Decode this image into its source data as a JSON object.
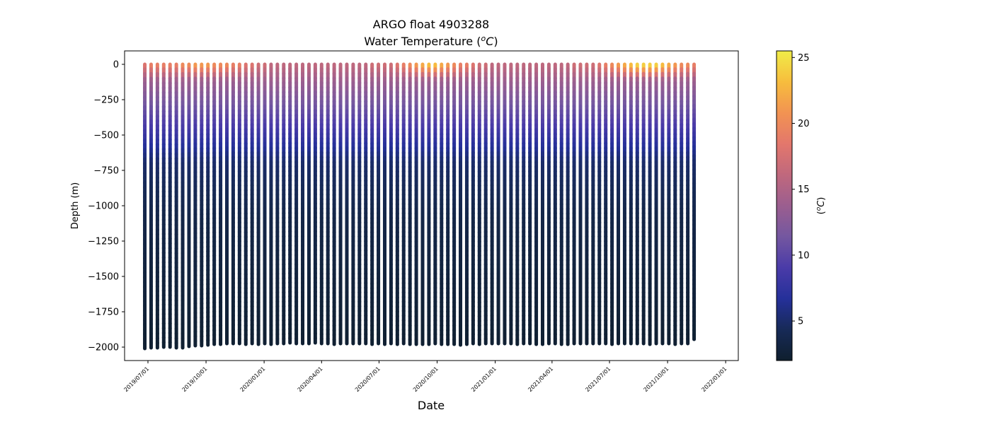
{
  "chart_data": {
    "type": "scatter",
    "title": "ARGO float 4903288",
    "subtitle": "Water Temperature (°C)",
    "subtitle_prefix": "Water Temperature (",
    "subtitle_unit_sup": "o",
    "subtitle_unit_letter": "C",
    "subtitle_suffix": ")",
    "xlabel": "Date",
    "ylabel": "Depth (m)",
    "x_type": "date",
    "xlim": [
      "2019-05-25",
      "2022-01-21"
    ],
    "ylim": [
      -2095,
      95
    ],
    "y_ticks": [
      0,
      -250,
      -500,
      -750,
      -1000,
      -1250,
      -1500,
      -1750,
      -2000
    ],
    "y_tick_labels": [
      "0",
      "−250",
      "−500",
      "−750",
      "−1000",
      "−1250",
      "−1500",
      "−1750",
      "−2000"
    ],
    "x_ticks": [
      "2019-07-01",
      "2019-10-01",
      "2020-01-01",
      "2020-04-01",
      "2020-07-01",
      "2020-10-01",
      "2021-01-01",
      "2021-04-01",
      "2021-07-01",
      "2021-10-01",
      "2022-01-01"
    ],
    "x_tick_labels": [
      "2019/07/01",
      "2019/10/01",
      "2020/01/01",
      "2020/04/01",
      "2020/07/01",
      "2020/10/01",
      "2021/01/01",
      "2021/04/01",
      "2021/07/01",
      "2021/10/01",
      "2022/01/01"
    ],
    "profiles": {
      "first_date": "2019-06-26",
      "interval_days": 10,
      "count": 88,
      "depth_range": [
        -2000,
        0
      ],
      "surface_temp_c": [
        18,
        19,
        19,
        19,
        19,
        19,
        20,
        20,
        21,
        21,
        21,
        20,
        20,
        20,
        19,
        19,
        18,
        18,
        17,
        17,
        16,
        16,
        16,
        16,
        16,
        16,
        16,
        16,
        16,
        16,
        16,
        16,
        16,
        16,
        16,
        16,
        17,
        17,
        17,
        17,
        18,
        19,
        20,
        21,
        22,
        23,
        23,
        22,
        21,
        20,
        19,
        19,
        18,
        17,
        17,
        16,
        16,
        16,
        16,
        16,
        16,
        16,
        16,
        16,
        16,
        16,
        16,
        16,
        17,
        17,
        17,
        17,
        18,
        19,
        20,
        21,
        22,
        23,
        24,
        24,
        24,
        24,
        23,
        22,
        21,
        20,
        20,
        19
      ],
      "bottom_depth_m": [
        -2010,
        -2005,
        -2005,
        -2000,
        -2000,
        -2005,
        -2005,
        -1995,
        -1990,
        -1990,
        -1985,
        -1980,
        -1980,
        -1975,
        -1975,
        -1975,
        -1980,
        -1975,
        -1980,
        -1975,
        -1980,
        -1975,
        -1975,
        -1970,
        -1975,
        -1975,
        -1975,
        -1970,
        -1975,
        -1975,
        -1980,
        -1975,
        -1975,
        -1975,
        -1975,
        -1975,
        -1980,
        -1975,
        -1980,
        -1975,
        -1980,
        -1975,
        -1980,
        -1980,
        -1980,
        -1980,
        -1975,
        -1980,
        -1980,
        -1980,
        -1985,
        -1980,
        -1975,
        -1980,
        -1975,
        -1975,
        -1975,
        -1975,
        -1975,
        -1980,
        -1975,
        -1975,
        -1980,
        -1980,
        -1975,
        -1975,
        -1980,
        -1980,
        -1975,
        -1975,
        -1975,
        -1975,
        -1975,
        -1975,
        -1980,
        -1975,
        -1975,
        -1975,
        -1975,
        -1975,
        -1980,
        -1975,
        -1975,
        -1975,
        -1980,
        -1975,
        -1975,
        -1945
      ]
    }
  },
  "colorbar": {
    "label_prefix": "(",
    "label_sup": "o",
    "label_letter": "C",
    "label_suffix": ")",
    "range": [
      2,
      25.5
    ],
    "ticks": [
      5,
      10,
      15,
      20,
      25
    ],
    "tick_labels": [
      "5",
      "10",
      "15",
      "20",
      "25"
    ],
    "colormap": [
      "#0f1f2e",
      "#172a57",
      "#25309a",
      "#4a3ba8",
      "#7457a0",
      "#9b5e8f",
      "#c0687d",
      "#e3776c",
      "#f29352",
      "#f7bd3d",
      "#f0ec48"
    ]
  }
}
